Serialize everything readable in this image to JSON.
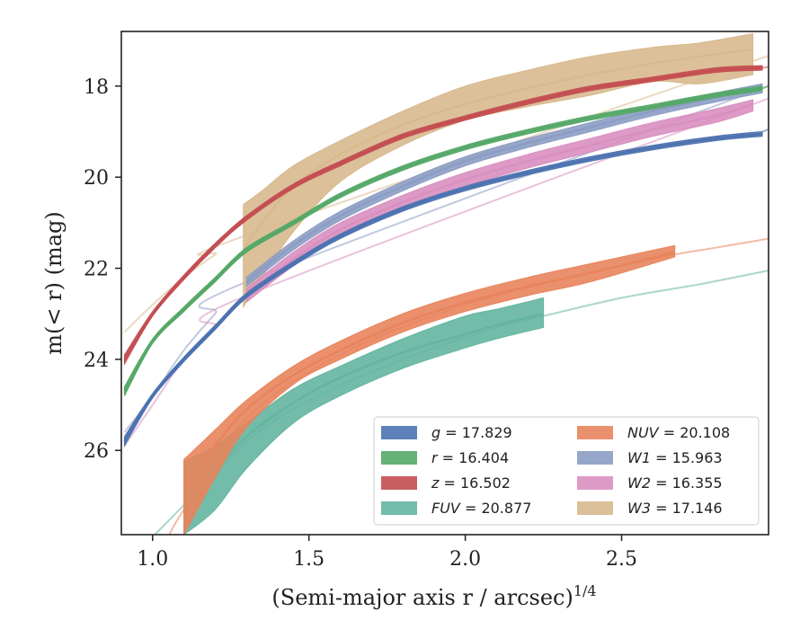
{
  "chart_data": {
    "type": "line",
    "xlabel": "(Semi-major axis r / arcsec)",
    "xlabel_sup": "1/4",
    "ylabel": "m(< r) (mag)",
    "xlim": [
      0.9,
      2.97
    ],
    "ylim": [
      27.85,
      16.8
    ],
    "y_inverted": true,
    "x_ticks": [
      "1.0",
      "1.5",
      "2.0",
      "2.5"
    ],
    "x_tick_values": [
      1.0,
      1.5,
      2.0,
      2.5
    ],
    "y_ticks": [
      "18",
      "20",
      "22",
      "24",
      "26"
    ],
    "y_tick_values": [
      18,
      20,
      22,
      24,
      26
    ],
    "grid": false,
    "legend_position": "lower-right",
    "series": [
      {
        "name": "g",
        "total_mag": "17.829",
        "color": "#4c72b0",
        "x": [
          0.91,
          1.0,
          1.1,
          1.2,
          1.3,
          1.45,
          1.6,
          1.8,
          2.0,
          2.2,
          2.4,
          2.6,
          2.8,
          2.95
        ],
        "y": [
          25.8,
          24.8,
          24.0,
          23.3,
          22.6,
          21.9,
          21.3,
          20.7,
          20.25,
          19.9,
          19.6,
          19.35,
          19.15,
          19.05
        ],
        "y_upper": [
          25.7,
          24.75,
          23.95,
          23.25,
          22.55,
          21.85,
          21.25,
          20.65,
          20.2,
          19.85,
          19.55,
          19.3,
          19.1,
          19.0
        ],
        "y_lower": [
          25.9,
          24.85,
          24.05,
          23.35,
          22.65,
          21.95,
          21.35,
          20.75,
          20.3,
          19.95,
          19.65,
          19.4,
          19.2,
          19.1
        ],
        "extrapolation": {
          "x": [
            2.95,
            2.97
          ],
          "y": [
            19.0,
            18.95
          ]
        }
      },
      {
        "name": "r",
        "total_mag": "16.404",
        "color": "#55a868",
        "x": [
          0.91,
          1.0,
          1.1,
          1.2,
          1.3,
          1.45,
          1.6,
          1.8,
          2.0,
          2.2,
          2.4,
          2.6,
          2.8,
          2.95
        ],
        "y": [
          24.7,
          23.6,
          22.9,
          22.25,
          21.6,
          21.0,
          20.4,
          19.8,
          19.35,
          19.0,
          18.7,
          18.45,
          18.2,
          18.05
        ],
        "y_upper": [
          24.6,
          23.55,
          22.85,
          22.2,
          21.55,
          20.95,
          20.35,
          19.75,
          19.3,
          18.95,
          18.65,
          18.4,
          18.15,
          18.0
        ],
        "y_lower": [
          24.8,
          23.65,
          22.95,
          22.3,
          21.65,
          21.05,
          20.45,
          19.85,
          19.4,
          19.05,
          18.75,
          18.5,
          18.25,
          18.1
        ],
        "extrapolation": {
          "x": [
            2.95,
            2.97
          ],
          "y": [
            18.05,
            18.0
          ]
        }
      },
      {
        "name": "z",
        "total_mag": "16.502",
        "color": "#c44e52",
        "x": [
          0.91,
          1.0,
          1.1,
          1.2,
          1.3,
          1.45,
          1.6,
          1.8,
          2.0,
          2.2,
          2.4,
          2.6,
          2.8,
          2.95
        ],
        "y": [
          24.0,
          23.0,
          22.2,
          21.5,
          20.9,
          20.2,
          19.7,
          19.1,
          18.7,
          18.35,
          18.05,
          17.85,
          17.65,
          17.6
        ],
        "y_upper": [
          23.9,
          22.95,
          22.15,
          21.45,
          20.85,
          20.15,
          19.65,
          19.05,
          18.65,
          18.3,
          18.0,
          17.8,
          17.6,
          17.55
        ],
        "y_lower": [
          24.1,
          23.05,
          22.25,
          21.55,
          20.95,
          20.25,
          19.75,
          19.15,
          18.75,
          18.4,
          18.1,
          17.9,
          17.7,
          17.65
        ],
        "extrapolation": {
          "x": [
            2.95,
            2.97
          ],
          "y": [
            17.6,
            17.58
          ]
        }
      },
      {
        "name": "FUV",
        "total_mag": "20.877",
        "color": "#64b5a0",
        "x": [
          1.1,
          1.2,
          1.3,
          1.45,
          1.6,
          1.8,
          2.0,
          2.1,
          2.25
        ],
        "y": [
          27.2,
          26.4,
          25.7,
          24.95,
          24.4,
          23.85,
          23.45,
          23.25,
          23.0
        ],
        "y_upper": [
          26.25,
          25.9,
          25.4,
          24.65,
          24.15,
          23.55,
          23.05,
          22.9,
          22.65
        ],
        "y_lower": [
          27.85,
          27.3,
          26.4,
          25.4,
          24.8,
          24.2,
          23.75,
          23.55,
          23.3
        ],
        "extrapolation": {
          "x": [
            1.0,
            1.1,
            1.3,
            1.5,
            1.8,
            2.1,
            2.25,
            2.5,
            2.75,
            2.97
          ],
          "y": [
            27.9,
            27.2,
            25.8,
            24.9,
            24.0,
            23.3,
            23.05,
            22.65,
            22.35,
            22.05
          ]
        }
      },
      {
        "name": "NUV",
        "total_mag": "20.108",
        "color": "#e8845c",
        "x": [
          1.1,
          1.2,
          1.3,
          1.45,
          1.6,
          1.8,
          2.0,
          2.2,
          2.4,
          2.67
        ],
        "y": [
          26.8,
          25.9,
          25.1,
          24.35,
          23.8,
          23.2,
          22.75,
          22.4,
          22.1,
          21.65
        ],
        "y_upper": [
          26.2,
          25.55,
          24.9,
          24.15,
          23.6,
          23.0,
          22.55,
          22.2,
          21.9,
          21.5
        ],
        "y_lower": [
          27.85,
          26.6,
          25.5,
          24.55,
          24.0,
          23.4,
          22.95,
          22.6,
          22.3,
          21.75
        ],
        "extrapolation": {
          "x": [
            1.05,
            1.1,
            1.3,
            1.6,
            2.0,
            2.4,
            2.67,
            2.8,
            2.97
          ],
          "y": [
            27.9,
            27.3,
            25.3,
            23.9,
            22.8,
            22.1,
            21.7,
            21.55,
            21.35
          ]
        }
      },
      {
        "name": "W1",
        "total_mag": "15.963",
        "color": "#8c9dc4",
        "x": [
          1.3,
          1.45,
          1.6,
          1.8,
          2.0,
          2.2,
          2.4,
          2.6,
          2.8,
          2.95
        ],
        "y": [
          22.3,
          21.5,
          20.85,
          20.2,
          19.65,
          19.25,
          18.9,
          18.55,
          18.25,
          18.05
        ],
        "y_upper": [
          22.2,
          21.4,
          20.75,
          20.1,
          19.55,
          19.15,
          18.8,
          18.45,
          18.15,
          17.95
        ],
        "y_lower": [
          22.4,
          21.6,
          20.95,
          20.3,
          19.75,
          19.35,
          19.0,
          18.65,
          18.35,
          18.15
        ],
        "extrapolation": {
          "x": [
            0.91,
            1.0,
            1.1,
            1.2,
            1.3,
            2.95,
            2.97
          ],
          "y": [
            25.6,
            24.8,
            23.8,
            23.0,
            22.3,
            18.05,
            18.0
          ]
        }
      },
      {
        "name": "W2",
        "total_mag": "16.355",
        "color": "#d98fc0",
        "x": [
          1.3,
          1.45,
          1.6,
          1.8,
          2.0,
          2.2,
          2.4,
          2.6,
          2.8,
          2.92
        ],
        "y": [
          22.6,
          21.8,
          21.15,
          20.55,
          20.05,
          19.65,
          19.3,
          18.95,
          18.65,
          18.4
        ],
        "y_upper": [
          22.45,
          21.65,
          21.0,
          20.4,
          19.9,
          19.5,
          19.15,
          18.8,
          18.5,
          18.3
        ],
        "y_lower": [
          22.75,
          21.95,
          21.3,
          20.7,
          20.2,
          19.8,
          19.45,
          19.1,
          18.8,
          18.55
        ],
        "extrapolation": {
          "x": [
            0.91,
            1.0,
            1.1,
            1.2,
            1.3,
            2.92,
            2.97
          ],
          "y": [
            25.9,
            25.0,
            24.0,
            23.3,
            22.6,
            18.4,
            18.3
          ]
        }
      },
      {
        "name": "W3",
        "total_mag": "17.146",
        "color": "#d8b98e",
        "x": [
          1.29,
          1.35,
          1.45,
          1.6,
          1.8,
          2.0,
          2.2,
          2.4,
          2.6,
          2.75,
          2.92
        ],
        "y": [
          21.6,
          21.0,
          20.2,
          19.5,
          18.85,
          18.4,
          18.05,
          17.75,
          17.5,
          17.35,
          17.2
        ],
        "y_upper": [
          20.6,
          20.3,
          19.75,
          19.2,
          18.55,
          18.0,
          17.65,
          17.35,
          17.15,
          17.05,
          16.85
        ],
        "y_lower": [
          22.85,
          22.2,
          21.2,
          20.1,
          19.3,
          18.75,
          18.45,
          18.2,
          17.9,
          17.95,
          17.75
        ],
        "extrapolation": {
          "x": [
            0.91,
            1.0,
            1.1,
            1.2,
            1.29,
            2.92,
            2.97
          ],
          "y": [
            23.4,
            22.8,
            22.2,
            21.7,
            21.3,
            17.45,
            17.4
          ]
        }
      }
    ]
  }
}
